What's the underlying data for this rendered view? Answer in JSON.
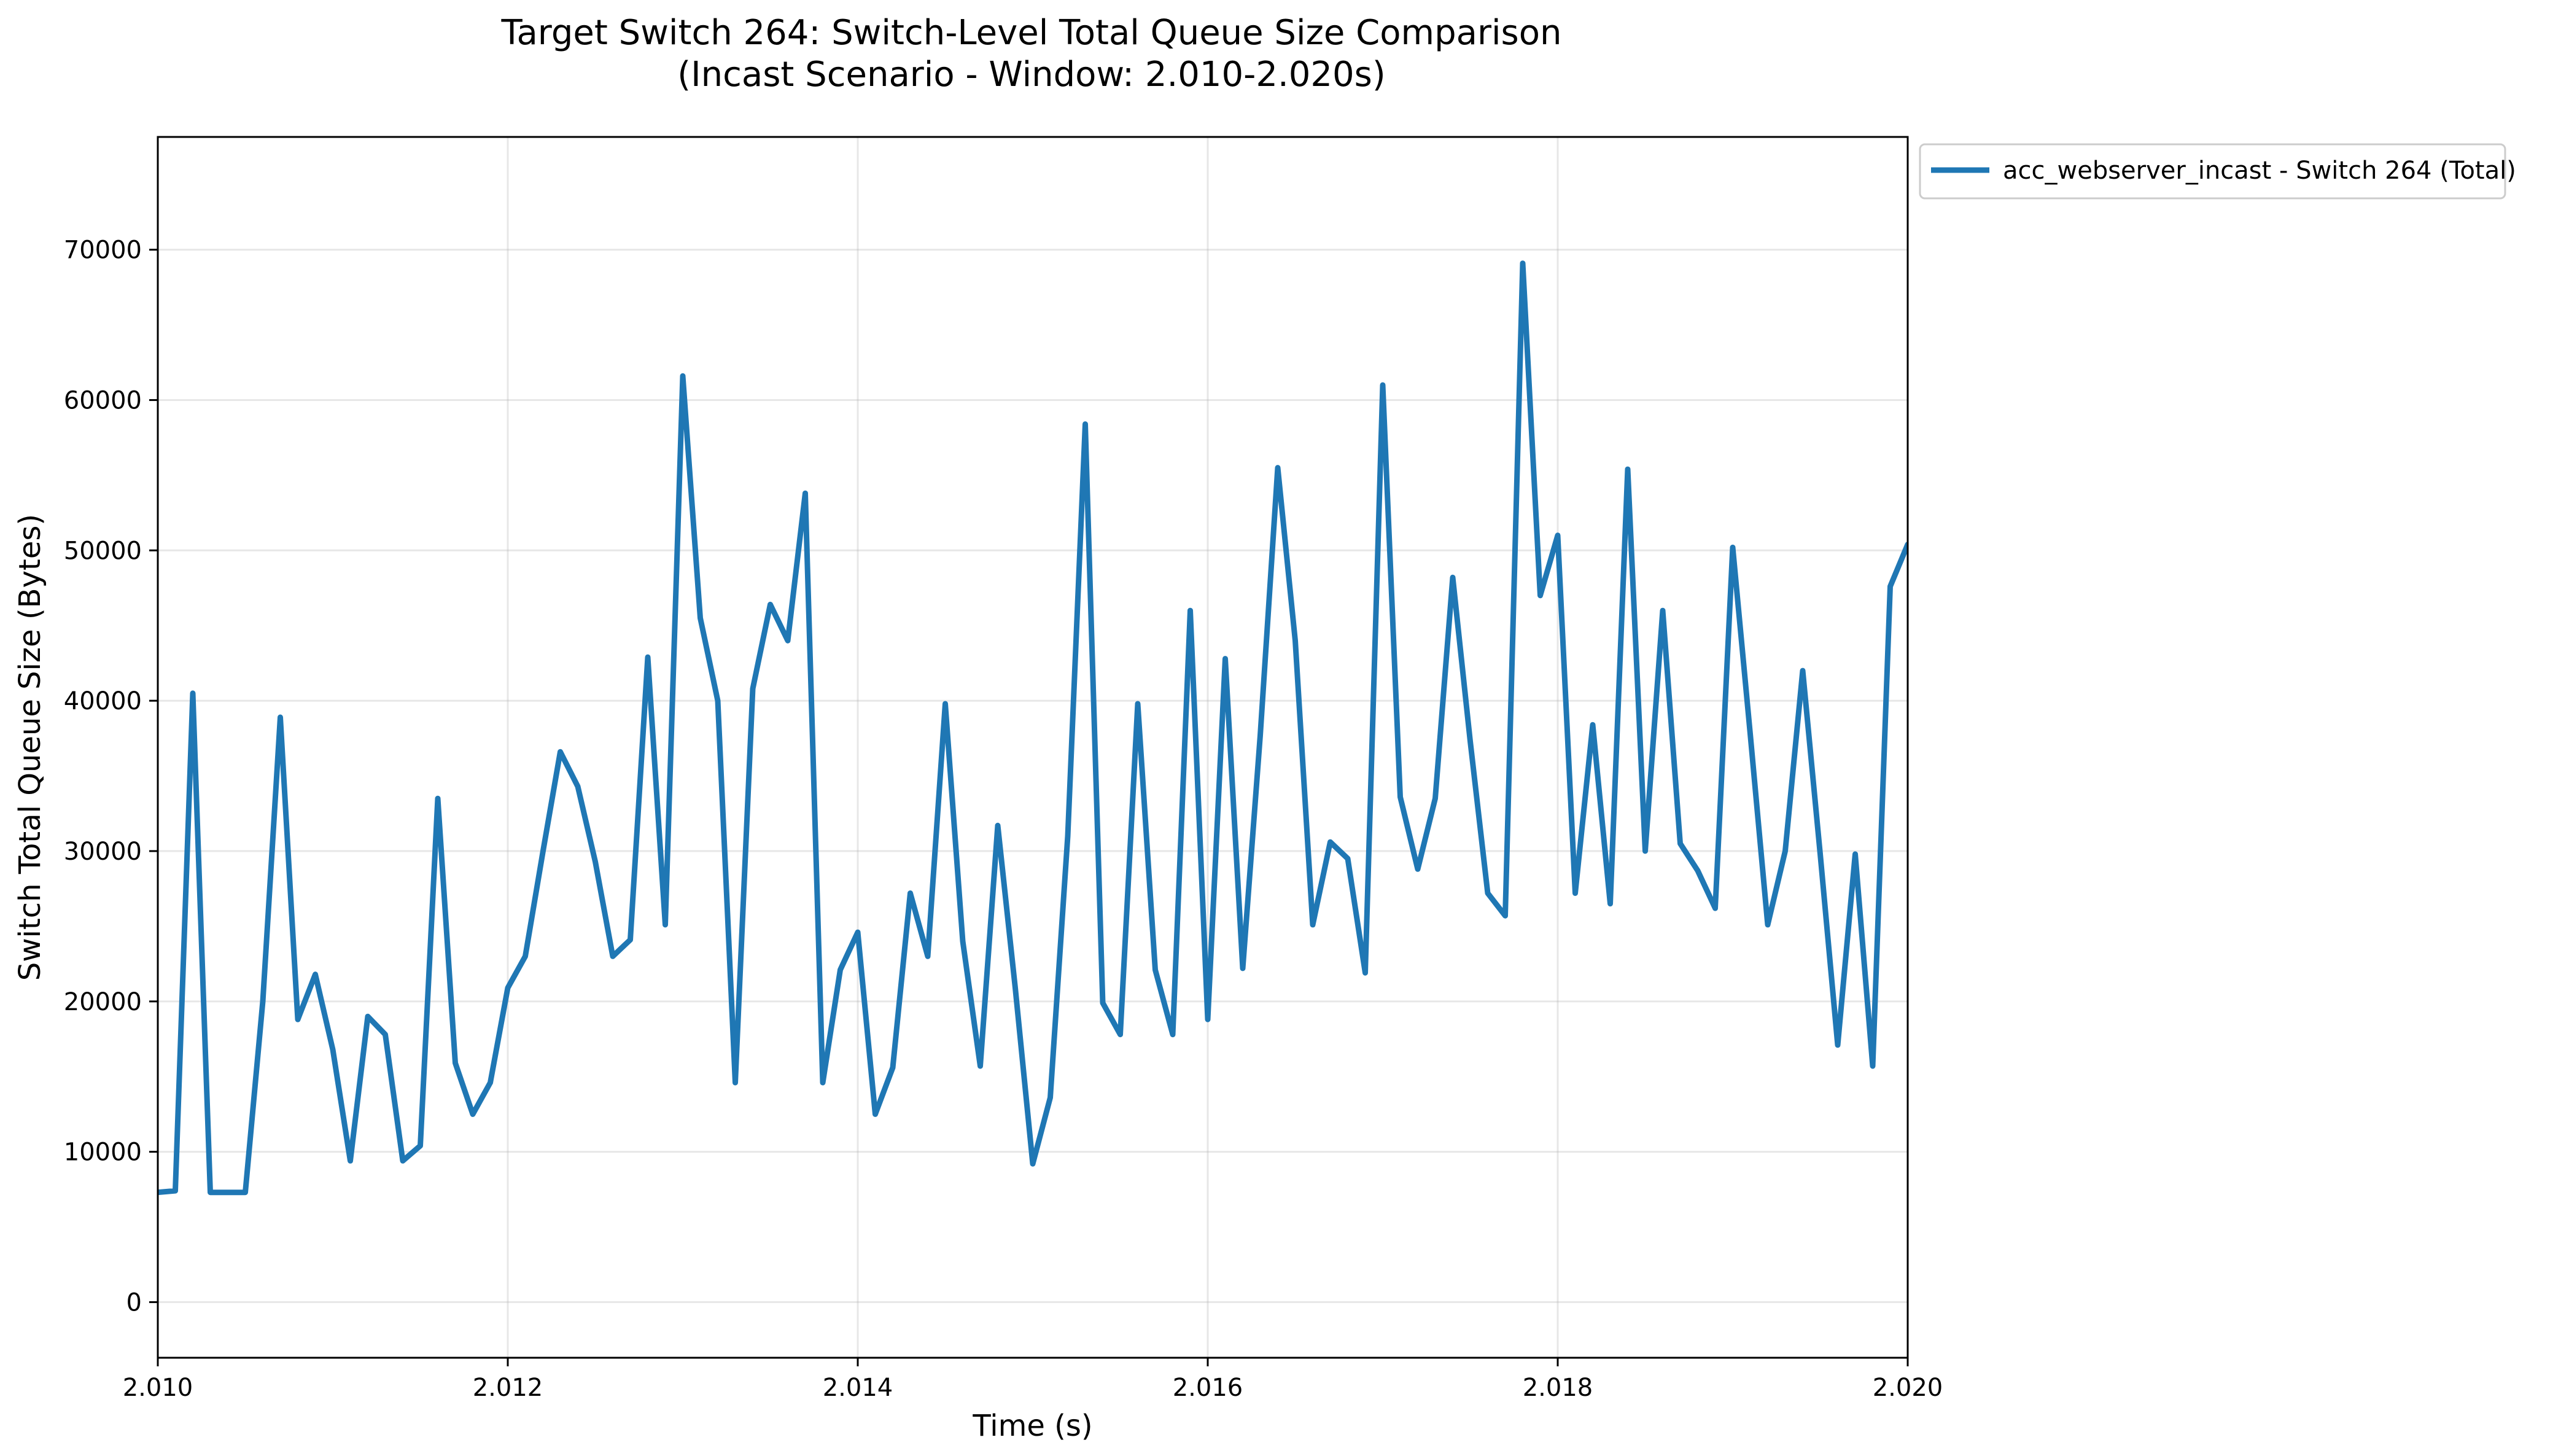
{
  "chart_data": {
    "type": "line",
    "title": "Target Switch 264: Switch-Level Total Queue Size Comparison",
    "subtitle": "(Incast Scenario - Window: 2.010-2.020s)",
    "xlabel": "Time (s)",
    "ylabel": "Switch Total Queue Size (Bytes)",
    "xlim": [
      2.01,
      2.02
    ],
    "ylim": [
      -3700,
      77500
    ],
    "x_ticks": [
      "2.010",
      "2.012",
      "2.014",
      "2.016",
      "2.018",
      "2.020"
    ],
    "y_ticks": [
      "0",
      "10000",
      "20000",
      "30000",
      "40000",
      "50000",
      "60000",
      "70000"
    ],
    "grid": true,
    "legend_position": "outside-top-right",
    "series": [
      {
        "name": "acc_webserver_incast - Switch 264 (Total)",
        "color": "#1f77b4",
        "x": [
          2.01,
          2.0101,
          2.0102,
          2.0103,
          2.0104,
          2.0105,
          2.0106,
          2.0107,
          2.0108,
          2.0109,
          2.011,
          2.0111,
          2.0112,
          2.0113,
          2.0114,
          2.0115,
          2.0116,
          2.0117,
          2.0118,
          2.0119,
          2.012,
          2.0121,
          2.0122,
          2.0123,
          2.0124,
          2.0125,
          2.0126,
          2.0127,
          2.0128,
          2.0129,
          2.013,
          2.0131,
          2.0132,
          2.0133,
          2.0134,
          2.0135,
          2.0136,
          2.0137,
          2.0138,
          2.0139,
          2.014,
          2.0141,
          2.0142,
          2.0143,
          2.0144,
          2.0145,
          2.0146,
          2.0147,
          2.0148,
          2.0149,
          2.015,
          2.0151,
          2.0152,
          2.0153,
          2.0154,
          2.0155,
          2.0156,
          2.0157,
          2.0158,
          2.0159,
          2.016,
          2.0161,
          2.0162,
          2.0163,
          2.0164,
          2.0165,
          2.0166,
          2.0167,
          2.0168,
          2.0169,
          2.017,
          2.0171,
          2.0172,
          2.0173,
          2.0174,
          2.0175,
          2.0176,
          2.0177,
          2.0178,
          2.0179,
          2.018,
          2.0181,
          2.0182,
          2.0183,
          2.0184,
          2.0185,
          2.0186,
          2.0187,
          2.0188,
          2.0189,
          2.019,
          2.0191,
          2.0192,
          2.0193,
          2.0194,
          2.0195,
          2.0196,
          2.0197,
          2.0198,
          2.0199,
          2.02
        ],
        "values": [
          7300,
          7400,
          40500,
          7300,
          7300,
          7300,
          20000,
          38900,
          18800,
          21800,
          16800,
          9400,
          19000,
          17800,
          9400,
          10400,
          33500,
          15900,
          12500,
          14600,
          20900,
          23000,
          29900,
          36600,
          34300,
          29300,
          23000,
          24100,
          42900,
          25100,
          61600,
          45500,
          40000,
          14600,
          40800,
          46400,
          44000,
          53800,
          14600,
          22100,
          24600,
          12500,
          15600,
          27200,
          23000,
          39800,
          24000,
          15700,
          31700,
          20900,
          9200,
          13600,
          31000,
          58400,
          19900,
          17800,
          39800,
          22100,
          17800,
          46000,
          18800,
          42800,
          22200,
          37700,
          55500,
          44000,
          25100,
          30600,
          29500,
          21900,
          61000,
          33600,
          28800,
          33500,
          48200,
          37300,
          27200,
          25700,
          69100,
          47000,
          51000,
          27200,
          38400,
          26500,
          55400,
          30000,
          46000,
          30500,
          28700,
          26200,
          50200,
          37800,
          25100,
          30000,
          42000,
          29800,
          17100,
          29800,
          15700,
          47600,
          50400
        ]
      }
    ]
  }
}
